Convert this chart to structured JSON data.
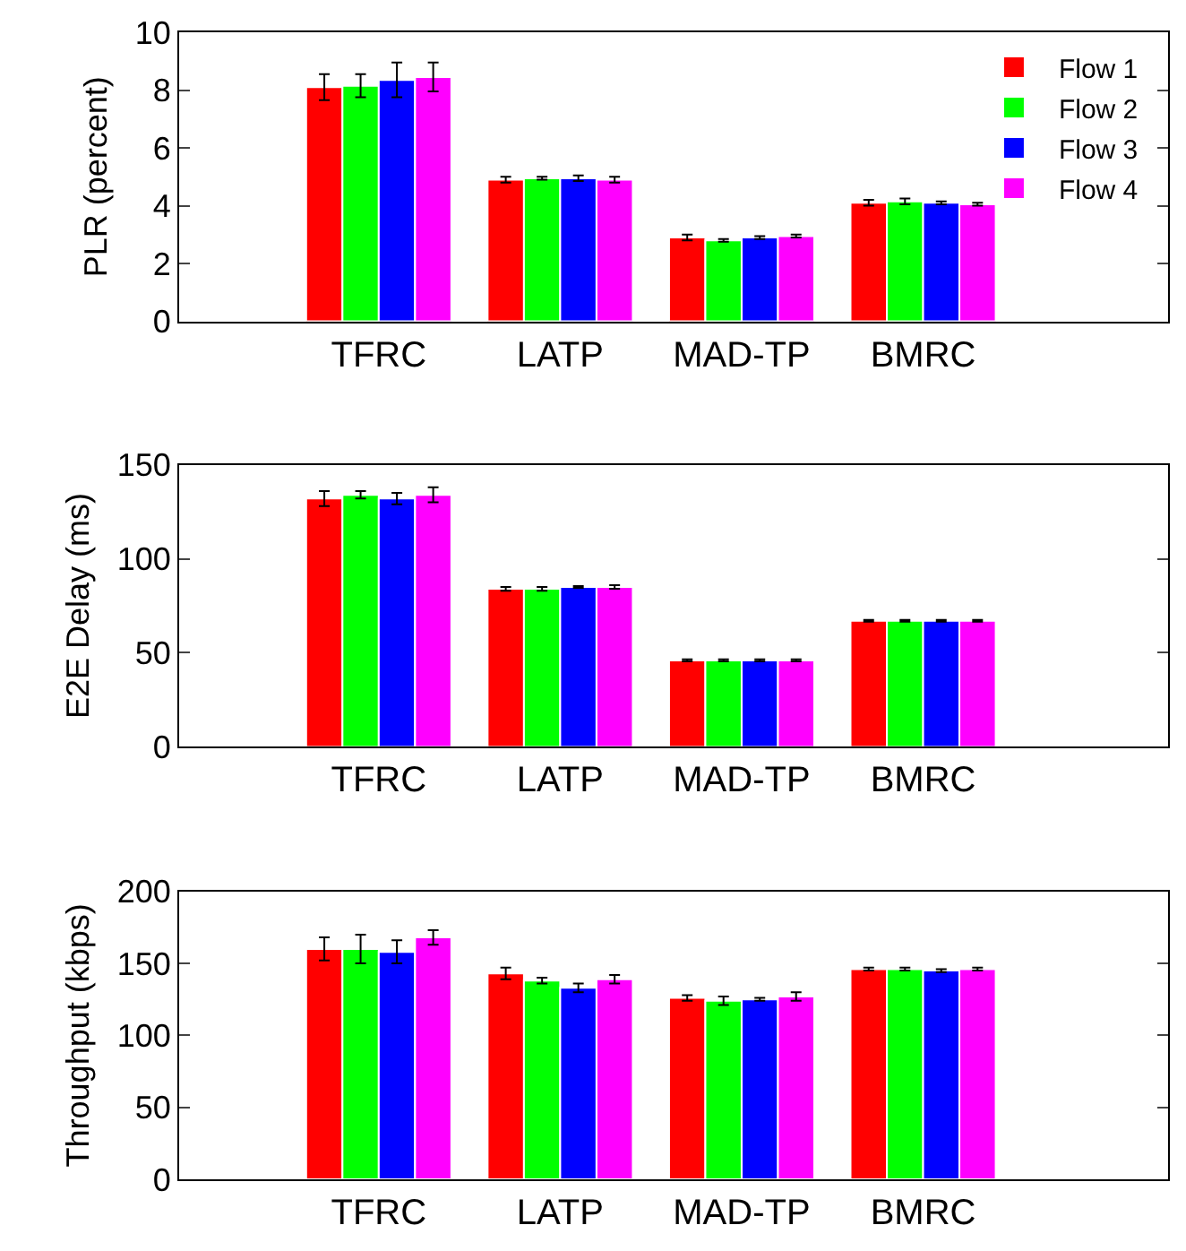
{
  "chart_data": [
    {
      "type": "bar",
      "ylabel": "PLR (percent)",
      "categories": [
        "TFRC",
        "LATP",
        "MAD-TP",
        "BMRC"
      ],
      "ylim": [
        0,
        10
      ],
      "yticks": [
        0,
        2,
        4,
        6,
        8,
        10
      ],
      "legend": "top right",
      "series": [
        {
          "name": "Flow 1",
          "color": "#ff0000",
          "values": [
            8.1,
            4.9,
            2.9,
            4.1
          ],
          "errors": [
            0.45,
            0.1,
            0.1,
            0.1
          ]
        },
        {
          "name": "Flow 2",
          "color": "#00ff00",
          "values": [
            8.15,
            4.95,
            2.8,
            4.15
          ],
          "errors": [
            0.4,
            0.05,
            0.05,
            0.1
          ]
        },
        {
          "name": "Flow 3",
          "color": "#0000ff",
          "values": [
            8.35,
            4.95,
            2.9,
            4.1
          ],
          "errors": [
            0.6,
            0.1,
            0.05,
            0.05
          ]
        },
        {
          "name": "Flow 4",
          "color": "#ff00ff",
          "values": [
            8.45,
            4.9,
            2.95,
            4.05
          ],
          "errors": [
            0.5,
            0.1,
            0.05,
            0.05
          ]
        }
      ]
    },
    {
      "type": "bar",
      "ylabel": "E2E Delay (ms)",
      "categories": [
        "TFRC",
        "LATP",
        "MAD-TP",
        "BMRC"
      ],
      "ylim": [
        0,
        150
      ],
      "yticks": [
        0,
        50,
        100,
        150
      ],
      "legend": false,
      "series": [
        {
          "color": "#ff0000",
          "values": [
            132,
            84,
            46,
            67
          ],
          "errors": [
            4,
            1,
            0.5,
            0.5
          ]
        },
        {
          "color": "#00ff00",
          "values": [
            134,
            84,
            46,
            67
          ],
          "errors": [
            2,
            1,
            0.5,
            0.5
          ]
        },
        {
          "color": "#0000ff",
          "values": [
            132,
            85,
            46,
            67
          ],
          "errors": [
            3,
            0.5,
            0.5,
            0.5
          ]
        },
        {
          "color": "#ff00ff",
          "values": [
            134,
            85,
            46,
            67
          ],
          "errors": [
            4,
            1,
            0.5,
            0.5
          ]
        }
      ]
    },
    {
      "type": "bar",
      "ylabel": "Throughput (kbps)",
      "categories": [
        "TFRC",
        "LATP",
        "MAD-TP",
        "BMRC"
      ],
      "ylim": [
        0,
        200
      ],
      "yticks": [
        0,
        50,
        100,
        150,
        200
      ],
      "legend": false,
      "series": [
        {
          "color": "#ff0000",
          "values": [
            160,
            143,
            126,
            146
          ],
          "errors": [
            8,
            4,
            2,
            1
          ]
        },
        {
          "color": "#00ff00",
          "values": [
            160,
            138,
            124,
            146
          ],
          "errors": [
            10,
            2,
            3,
            1
          ]
        },
        {
          "color": "#0000ff",
          "values": [
            158,
            133,
            125,
            145
          ],
          "errors": [
            8,
            3,
            1,
            1
          ]
        },
        {
          "color": "#ff00ff",
          "values": [
            168,
            139,
            127,
            146
          ],
          "errors": [
            5,
            3,
            3,
            1
          ]
        }
      ]
    }
  ]
}
